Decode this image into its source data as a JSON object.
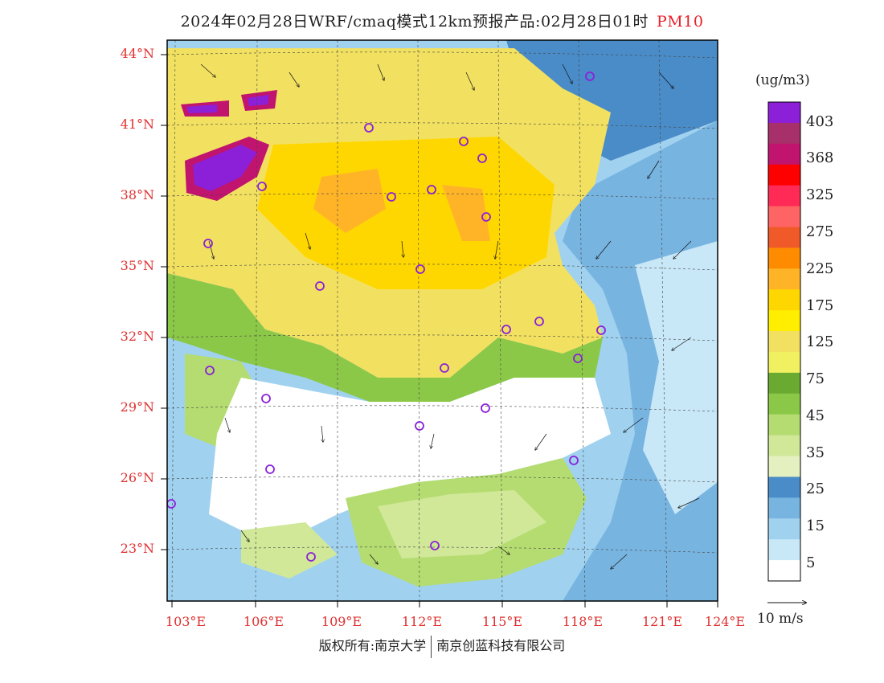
{
  "title": {
    "text": "2024年02月28日WRF/cmaq模式12km预报产品:02月28日01时",
    "pollutant": "PM10"
  },
  "axes": {
    "lat_labels": [
      "44°N",
      "41°N",
      "38°N",
      "35°N",
      "32°N",
      "29°N",
      "26°N",
      "23°N"
    ],
    "lon_labels": [
      "103°E",
      "106°E",
      "109°E",
      "112°E",
      "115°E",
      "118°E",
      "121°E",
      "124°E"
    ]
  },
  "colorbar": {
    "unit": "(ug/m3)",
    "labels": [
      "403",
      "368",
      "325",
      "275",
      "225",
      "175",
      "125",
      "75",
      "45",
      "35",
      "25",
      "15",
      "5"
    ],
    "colors": [
      "#8b20d8",
      "#a8306a",
      "#c0146e",
      "#ff0000",
      "#ff2a55",
      "#ff6464",
      "#f05a28",
      "#ff8c00",
      "#ffb428",
      "#ffd700",
      "#ffee00",
      "#f2e060",
      "#f0f060",
      "#6aaa30",
      "#8cc848",
      "#b4dc70",
      "#d0e898",
      "#e4f0c0",
      "#4a8cc8",
      "#78b4e0",
      "#a0d2f0",
      "#c8e8f8",
      "#ffffff"
    ]
  },
  "wind_reference": "10 m/s",
  "footer": {
    "left": "版权所有:南京大学",
    "right": "南京创蓝科技有限公司"
  }
}
